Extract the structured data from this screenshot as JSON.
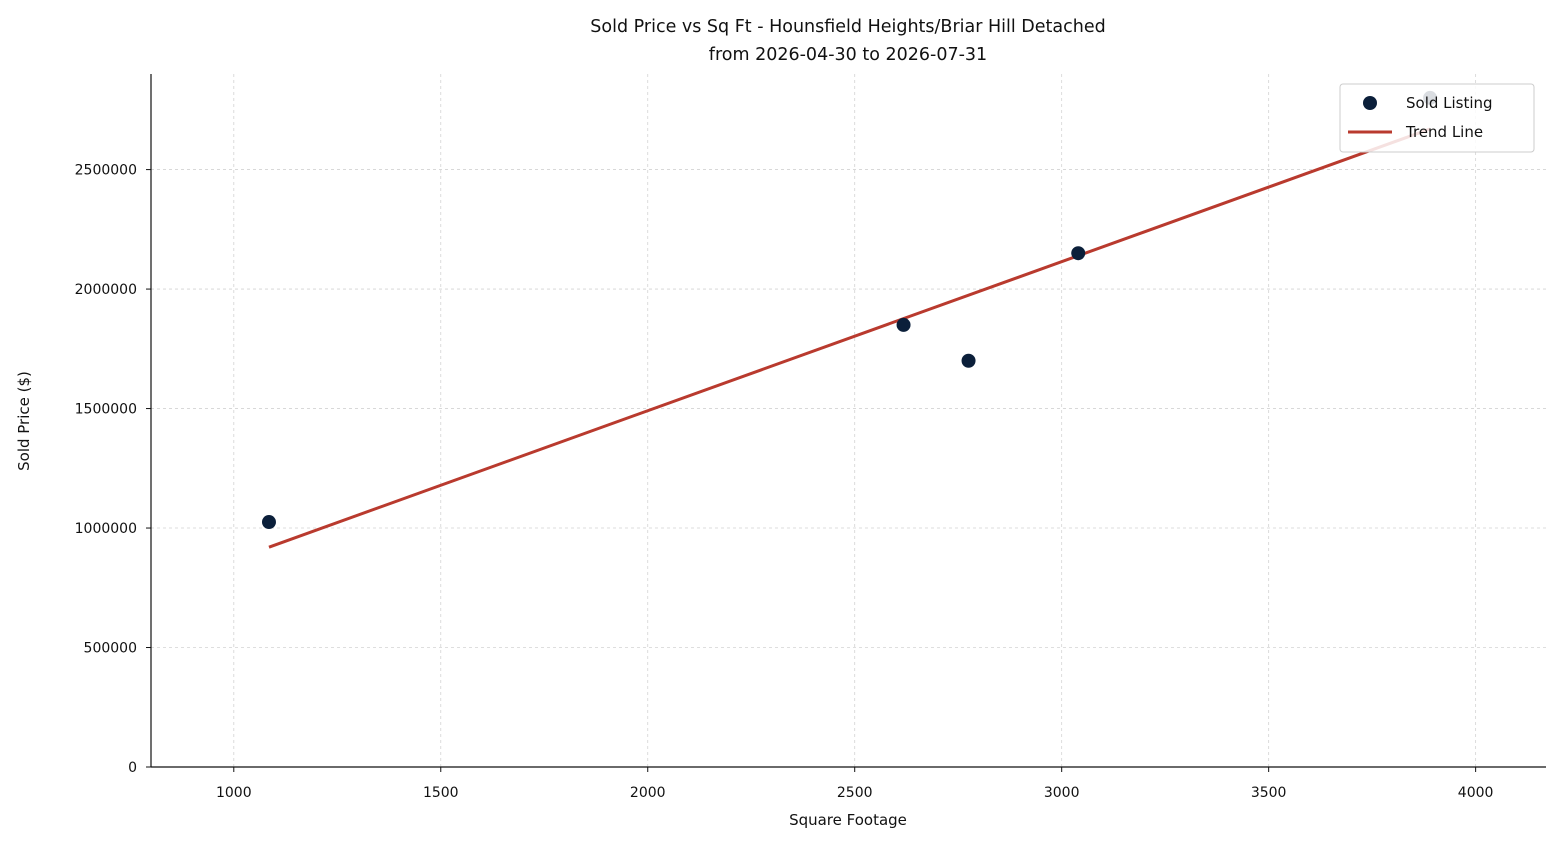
{
  "chart_data": {
    "type": "scatter",
    "title": "Sold Price vs Sq Ft - Hounsfield Heights/Briar Hill Detached",
    "subtitle": "from 2026-04-30 to 2026-07-31",
    "xlabel": "Square Footage",
    "ylabel": "Sold Price ($)",
    "xlim": [
      800,
      4170
    ],
    "ylim": [
      0,
      2900000
    ],
    "xticks": [
      1000,
      1500,
      2000,
      2500,
      3000,
      3500,
      4000
    ],
    "xtick_labels": [
      "1000",
      "1500",
      "2000",
      "2500",
      "3000",
      "3500",
      "4000"
    ],
    "yticks": [
      0,
      500000,
      1000000,
      1500000,
      2000000,
      2500000
    ],
    "ytick_labels": [
      "0",
      "500000",
      "1000000",
      "1500000",
      "2000000",
      "2500000"
    ],
    "grid": true,
    "legend_position": "top-right",
    "series": [
      {
        "name": "Sold Listing",
        "kind": "scatter",
        "color": "#0b1f3a",
        "x": [
          1085,
          2618,
          2775,
          3040,
          3890
        ],
        "y": [
          1025000,
          1850000,
          1700000,
          2150000,
          2800000
        ]
      },
      {
        "name": "Trend Line",
        "kind": "line",
        "color": "#b93a2e",
        "x": [
          1085,
          3890
        ],
        "y": [
          920000,
          2670000
        ]
      }
    ]
  }
}
